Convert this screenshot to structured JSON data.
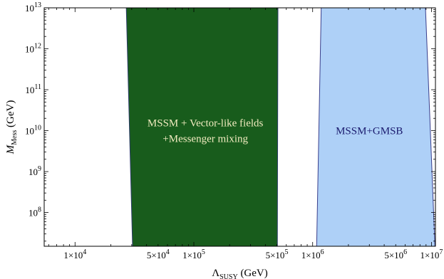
{
  "chart_data": {
    "type": "area",
    "title": "",
    "xlabel": {
      "base": "Λ",
      "sub": "SUSY",
      "unit": " (GeV)"
    },
    "ylabel": {
      "base": "M",
      "sub": "Mess",
      "unit": " (GeV)"
    },
    "x_scale": "log",
    "y_scale": "log",
    "xlim": [
      5500,
      10800000
    ],
    "ylim": [
      15000000,
      10000000000000
    ],
    "grid": false,
    "x_ticks": [
      {
        "value": 10000,
        "coef": "1×10",
        "exp": "4"
      },
      {
        "value": 50000,
        "coef": "5×10",
        "exp": "4"
      },
      {
        "value": 100000,
        "coef": "1×10",
        "exp": "5"
      },
      {
        "value": 500000,
        "coef": "5×10",
        "exp": "5"
      },
      {
        "value": 1000000,
        "coef": "1×10",
        "exp": "6"
      },
      {
        "value": 5000000,
        "coef": "5×10",
        "exp": "6"
      },
      {
        "value": 10000000,
        "coef": "1×10",
        "exp": "7"
      }
    ],
    "y_ticks": [
      {
        "value": 100000000,
        "coef": "10",
        "exp": "8"
      },
      {
        "value": 1000000000,
        "coef": "10",
        "exp": "9"
      },
      {
        "value": 10000000000,
        "coef": "10",
        "exp": "10"
      },
      {
        "value": 100000000000,
        "coef": "10",
        "exp": "11"
      },
      {
        "value": 1000000000000,
        "coef": "10",
        "exp": "12"
      },
      {
        "value": 10000000000000,
        "coef": "10",
        "exp": "13"
      }
    ],
    "regions": [
      {
        "name": "MSSM + Vector-like fields +Messenger mixing",
        "label_lines": [
          "MSSM + Vector-like fields",
          "+Messenger mixing"
        ],
        "label_color": "#f2ecc0",
        "fill": "#185c1c",
        "stroke": "#2c3a6a",
        "points": [
          [
            27000,
            10000000000000
          ],
          [
            510000,
            10000000000000
          ],
          [
            505000,
            15000000
          ],
          [
            30500,
            15000000
          ]
        ],
        "label_at": [
          125000,
          10000000000
        ]
      },
      {
        "name": "MSSM+GMSB",
        "label_lines": [
          "MSSM+GMSB"
        ],
        "label_color": "#1a1a6e",
        "fill": "#aed0f7",
        "stroke": "#3a3f8c",
        "points": [
          [
            1180000,
            10000000000000
          ],
          [
            8900000,
            10000000000000
          ],
          [
            10700000,
            15000000
          ],
          [
            1080000,
            15000000
          ]
        ],
        "label_at": [
          3000000,
          10000000000
        ]
      }
    ]
  }
}
